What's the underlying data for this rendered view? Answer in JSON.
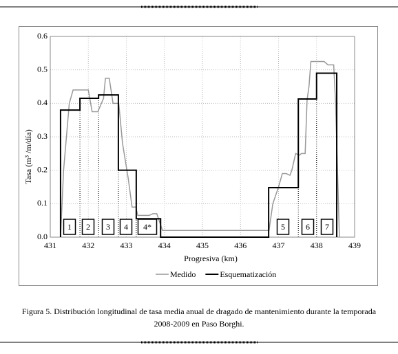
{
  "chart_data": {
    "type": "line",
    "xlabel": "Progresiva (km)",
    "ylabel": "Tasa (m³ /m/día)",
    "xlim": [
      431,
      439
    ],
    "xticks": [
      431,
      432,
      433,
      434,
      435,
      436,
      437,
      438,
      439
    ],
    "ylim": [
      0,
      0.6
    ],
    "yticks": [
      {
        "value": 0,
        "label": "0.0"
      },
      0.1,
      0.2,
      0.3,
      0.4,
      0.5,
      0.6
    ],
    "grid": true,
    "legend": "bottom",
    "series": [
      {
        "name": "Medido",
        "color": "#999999",
        "x": [
          431.27,
          431.35,
          431.5,
          431.6,
          432.0,
          432.1,
          432.25,
          432.4,
          432.45,
          432.55,
          432.65,
          432.8,
          432.9,
          433.05,
          433.15,
          433.25,
          433.3,
          433.6,
          433.7,
          433.8,
          433.95,
          436.75,
          436.85,
          437.0,
          437.1,
          437.2,
          437.3,
          437.35,
          437.45,
          437.55,
          437.6,
          437.7,
          437.75,
          437.8,
          437.85,
          438.2,
          438.3,
          438.45,
          438.5,
          438.6
        ],
        "values": [
          0,
          0.2,
          0.4,
          0.44,
          0.44,
          0.375,
          0.375,
          0.415,
          0.475,
          0.475,
          0.4,
          0.4,
          0.28,
          0.175,
          0.09,
          0.09,
          0.065,
          0.065,
          0.07,
          0.07,
          0.02,
          0.02,
          0.1,
          0.15,
          0.19,
          0.19,
          0.185,
          0.2,
          0.25,
          0.245,
          0.25,
          0.25,
          0.41,
          0.45,
          0.525,
          0.525,
          0.515,
          0.515,
          0.4,
          0
        ]
      },
      {
        "name": "Esquematización",
        "color": "#000000",
        "x": [
          431.27,
          431.27,
          431.78,
          431.78,
          432.27,
          432.27,
          432.79,
          432.79,
          433.26,
          433.26,
          433.9,
          433.9,
          436.74,
          436.74,
          437.52,
          437.52,
          438.0,
          438.0,
          438.53,
          438.53
        ],
        "values": [
          0,
          0.38,
          0.38,
          0.415,
          0.415,
          0.425,
          0.425,
          0.2,
          0.2,
          0.055,
          0.055,
          0,
          0,
          0.148,
          0.148,
          0.413,
          0.413,
          0.49,
          0.49,
          0
        ]
      }
    ],
    "annotations": [
      "1",
      "2",
      "3",
      "4",
      "4*",
      "5",
      "6",
      "7"
    ]
  },
  "caption": [
    "Figura 5. Distribución longitudinal de tasa media anual de dragado de mantenimiento durante la temporada",
    "2008-2009 en Paso Borghi."
  ]
}
